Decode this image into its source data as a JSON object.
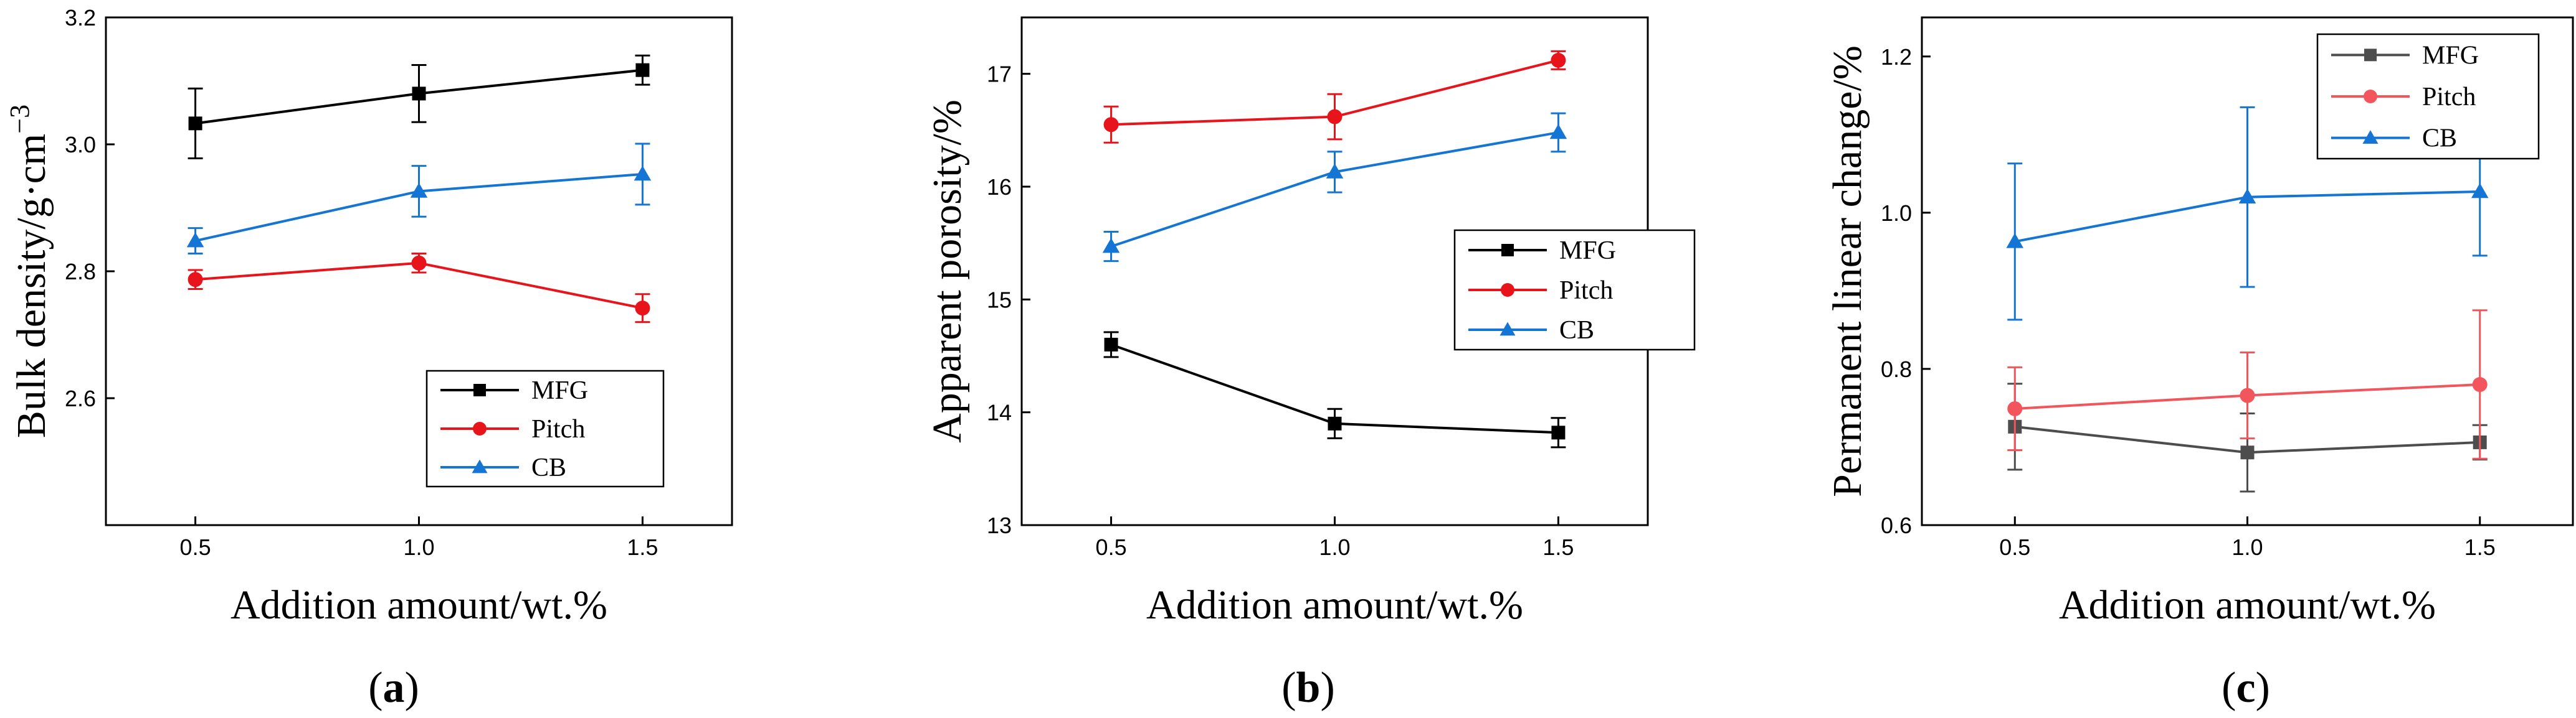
{
  "chart_data": [
    {
      "type": "line",
      "panel": "a",
      "panel_label": {
        "open": "(",
        "letter": "a",
        "close": ")"
      },
      "xlabel": "Addition amount/wt.%",
      "ylabel": "Bulk density/g·cm",
      "ylabel_sup": "−3",
      "xlim": [
        0.3,
        1.7
      ],
      "ylim": [
        2.4,
        3.2
      ],
      "x_ticks": [
        0.5,
        1.0,
        1.5
      ],
      "x_tick_labels": [
        "0.5",
        "1.0",
        "1.5"
      ],
      "y_ticks": [
        2.6,
        2.8,
        3.0,
        3.2
      ],
      "y_tick_labels": [
        "2.6",
        "2.8",
        "3.0",
        "3.2"
      ],
      "legend_position": "bottom-right",
      "series": [
        {
          "name": "MFG",
          "color": "#000000",
          "marker": "square",
          "x": [
            0.5,
            1.0,
            1.5
          ],
          "y": [
            3.033,
            3.08,
            3.117
          ],
          "err": [
            0.055,
            0.045,
            0.023
          ]
        },
        {
          "name": "Pitch",
          "color": "#e8141b",
          "marker": "circle",
          "x": [
            0.5,
            1.0,
            1.5
          ],
          "y": [
            2.787,
            2.813,
            2.742
          ],
          "err": [
            0.015,
            0.015,
            0.022
          ]
        },
        {
          "name": "CB",
          "color": "#1575d4",
          "marker": "triangle",
          "x": [
            0.5,
            1.0,
            1.5
          ],
          "y": [
            2.848,
            2.926,
            2.953
          ],
          "err": [
            0.02,
            0.04,
            0.048
          ]
        }
      ]
    },
    {
      "type": "line",
      "panel": "b",
      "panel_label": {
        "open": "(",
        "letter": "b",
        "close": ")"
      },
      "xlabel": "Addition amount/wt.%",
      "ylabel": "Apparent porosity/%",
      "xlim": [
        0.3,
        1.7
      ],
      "ylim": [
        13,
        17.5
      ],
      "x_ticks": [
        0.5,
        1.0,
        1.5
      ],
      "x_tick_labels": [
        "0.5",
        "1.0",
        "1.5"
      ],
      "y_ticks": [
        13,
        14,
        15,
        16,
        17
      ],
      "y_tick_labels": [
        "13",
        "14",
        "15",
        "16",
        "17"
      ],
      "legend_position": "center-right",
      "series": [
        {
          "name": "MFG",
          "color": "#000000",
          "marker": "square",
          "x": [
            0.5,
            1.0,
            1.5
          ],
          "y": [
            14.6,
            13.9,
            13.82
          ],
          "err": [
            0.11,
            0.13,
            0.13
          ]
        },
        {
          "name": "Pitch",
          "color": "#e8141b",
          "marker": "circle",
          "x": [
            0.5,
            1.0,
            1.5
          ],
          "y": [
            16.55,
            16.62,
            17.12
          ],
          "err": [
            0.16,
            0.2,
            0.08
          ]
        },
        {
          "name": "CB",
          "color": "#1575d4",
          "marker": "triangle",
          "x": [
            0.5,
            1.0,
            1.5
          ],
          "y": [
            15.47,
            16.13,
            16.48
          ],
          "err": [
            0.13,
            0.18,
            0.17
          ]
        }
      ]
    },
    {
      "type": "line",
      "panel": "c",
      "panel_label": {
        "open": "(",
        "letter": "c",
        "close": ")"
      },
      "xlabel": "Addition amount/wt.%",
      "ylabel": "Permanent linear change/%",
      "xlim": [
        0.3,
        1.7
      ],
      "ylim": [
        0.6,
        1.25
      ],
      "x_ticks": [
        0.5,
        1.0,
        1.5
      ],
      "x_tick_labels": [
        "0.5",
        "1.0",
        "1.5"
      ],
      "y_ticks": [
        0.6,
        0.8,
        1.0,
        1.2
      ],
      "y_tick_labels": [
        "0.6",
        "0.8",
        "1.0",
        "1.2"
      ],
      "legend_position": "top-right",
      "series": [
        {
          "name": "MFG",
          "color": "#4d4d4d",
          "marker": "square",
          "x": [
            0.5,
            1.0,
            1.5
          ],
          "y": [
            0.726,
            0.693,
            0.706
          ],
          "err": [
            0.055,
            0.05,
            0.022
          ]
        },
        {
          "name": "Pitch",
          "color": "#f2565c",
          "marker": "circle",
          "x": [
            0.5,
            1.0,
            1.5
          ],
          "y": [
            0.749,
            0.766,
            0.78
          ],
          "err": [
            0.053,
            0.055,
            0.095
          ]
        },
        {
          "name": "CB",
          "color": "#1575d4",
          "marker": "triangle",
          "x": [
            0.5,
            1.0,
            1.5
          ],
          "y": [
            0.963,
            1.02,
            1.027
          ],
          "err": [
            0.1,
            0.115,
            0.082
          ]
        }
      ]
    }
  ]
}
